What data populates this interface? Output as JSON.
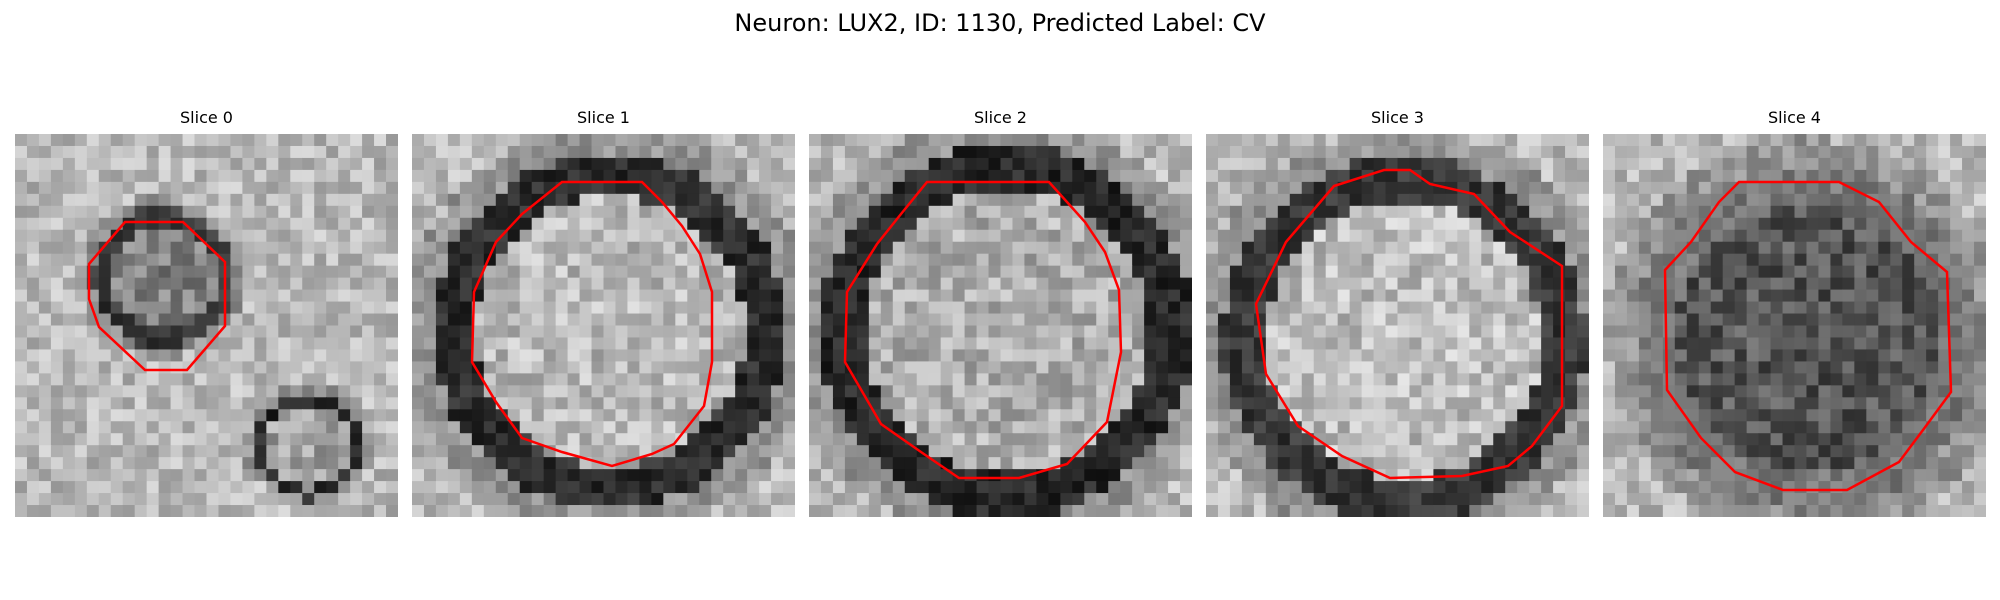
{
  "figure": {
    "title": "Neuron: LUX2, ID: 1130, Predicted Label: CV"
  },
  "contour_color": "#ff0000",
  "slices": [
    {
      "title": "Slice 0"
    },
    {
      "title": "Slice 1"
    },
    {
      "title": "Slice 2"
    },
    {
      "title": "Slice 3"
    },
    {
      "title": "Slice 4"
    }
  ]
}
